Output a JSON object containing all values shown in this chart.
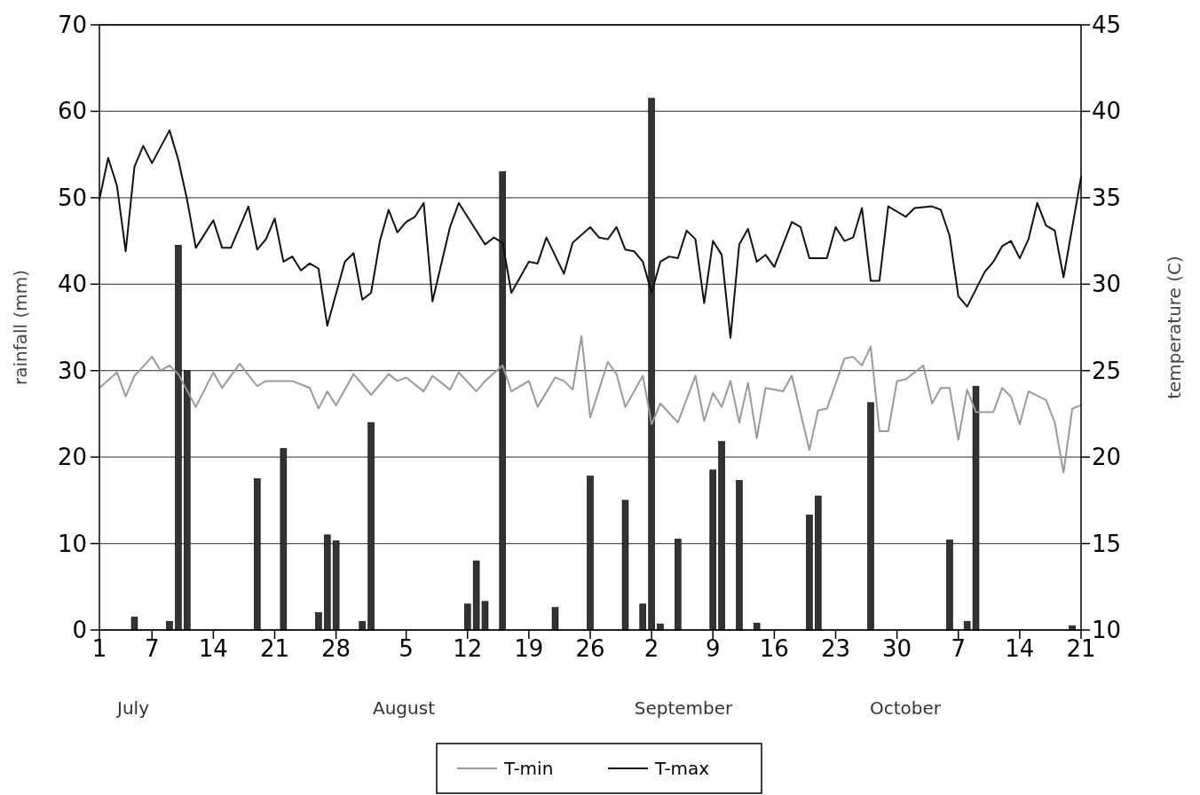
{
  "chart_data": {
    "type": "line",
    "xlabel": null,
    "ylabel": "rainfall (mm)",
    "y2label": "temperature (C)",
    "annotations": [
      "July",
      "August",
      "September",
      "October"
    ],
    "xlim": [
      "--07-01",
      "--10-21"
    ],
    "xticks": [
      {
        "value": "--07-01",
        "label": "1"
      },
      {
        "value": "--07-07",
        "label": "7"
      },
      {
        "value": "--07-14",
        "label": "14"
      },
      {
        "value": "--07-21",
        "label": "21"
      },
      {
        "value": "--07-28",
        "label": "28"
      },
      {
        "value": "--08-05",
        "label": "5"
      },
      {
        "value": "--08-12",
        "label": "12"
      },
      {
        "value": "--08-19",
        "label": "19"
      },
      {
        "value": "--08-26",
        "label": "26"
      },
      {
        "value": "--09-02",
        "label": "2"
      },
      {
        "value": "--09-09",
        "label": "9"
      },
      {
        "value": "--09-16",
        "label": "16"
      },
      {
        "value": "--09-23",
        "label": "23"
      },
      {
        "value": "--09-30",
        "label": "30"
      },
      {
        "value": "--10-07",
        "label": "7"
      },
      {
        "value": "--10-14",
        "label": "14"
      },
      {
        "value": "--10-21",
        "label": "21"
      }
    ],
    "ylim": [
      0,
      70
    ],
    "yticks": [
      0,
      10,
      20,
      30,
      40,
      50,
      60,
      70
    ],
    "y2lim": [
      10,
      45
    ],
    "y2ticks": [
      10,
      15,
      20,
      25,
      30,
      35,
      40,
      45
    ],
    "grid": "y",
    "legend": "bottom",
    "line_style": "solid",
    "marker": "none",
    "series": [
      {
        "type": "bar",
        "color": "#333333",
        "x": [
          "--07-05",
          "--07-09",
          "--07-10",
          "--07-11",
          "--07-19",
          "--07-22",
          "--07-26",
          "--07-27",
          "--07-28",
          "--07-31",
          "--08-01",
          "--08-12",
          "--08-13",
          "--08-14",
          "--08-16",
          "--08-22",
          "--08-26",
          "--08-30",
          "--09-01",
          "--09-02",
          "--09-03",
          "--09-05",
          "--09-09",
          "--09-10",
          "--09-12",
          "--09-14",
          "--09-20",
          "--09-21",
          "--09-27",
          "--10-06",
          "--10-08",
          "--10-09",
          "--10-20"
        ],
        "values": [
          1.5,
          1,
          44.5,
          30,
          17.5,
          21,
          2,
          11,
          10.3,
          1,
          24,
          3,
          8,
          3.3,
          53,
          2.6,
          17.8,
          15,
          3,
          61.5,
          0.7,
          10.5,
          18.5,
          21.8,
          17.3,
          0.8,
          13.3,
          15.5,
          26.3,
          10.4,
          1,
          28.2,
          0.5
        ]
      },
      {
        "name": "T-min",
        "axis": "y2",
        "color": "#999999",
        "x": [
          "--07-01",
          "--07-03",
          "--07-04",
          "--07-05",
          "--07-07",
          "--07-08",
          "--07-09",
          "--07-10",
          "--07-12",
          "--07-14",
          "--07-15",
          "--07-17",
          "--07-19",
          "--07-20",
          "--07-23",
          "--07-25",
          "--07-26",
          "--07-27",
          "--07-28",
          "--07-30",
          "--08-01",
          "--08-03",
          "--08-04",
          "--08-05",
          "--08-07",
          "--08-08",
          "--08-10",
          "--08-11",
          "--08-13",
          "--08-14",
          "--08-16",
          "--08-17",
          "--08-19",
          "--08-20",
          "--08-22",
          "--08-23",
          "--08-24",
          "--08-25",
          "--08-26",
          "--08-28",
          "--08-29",
          "--08-30",
          "--09-01",
          "--09-02",
          "--09-03",
          "--09-05",
          "--09-07",
          "--09-08",
          "--09-09",
          "--09-10",
          "--09-11",
          "--09-12",
          "--09-13",
          "--09-14",
          "--09-15",
          "--09-17",
          "--09-18",
          "--09-20",
          "--09-21",
          "--09-22",
          "--09-24",
          "--09-25",
          "--09-26",
          "--09-27",
          "--09-28",
          "--09-29",
          "--09-30",
          "--10-01",
          "--10-03",
          "--10-04",
          "--10-05",
          "--10-06",
          "--10-07",
          "--10-08",
          "--10-09",
          "--10-11",
          "--10-12",
          "--10-13",
          "--10-14",
          "--10-15",
          "--10-17",
          "--10-18",
          "--10-19",
          "--10-20",
          "--10-21"
        ],
        "values": [
          24.0,
          24.9,
          23.5,
          24.7,
          25.8,
          25.0,
          25.3,
          24.8,
          22.9,
          24.9,
          24.0,
          25.4,
          24.1,
          24.4,
          24.4,
          24.0,
          22.8,
          23.8,
          23.0,
          24.8,
          23.6,
          24.8,
          24.4,
          24.6,
          23.8,
          24.7,
          23.9,
          24.9,
          23.8,
          24.4,
          25.3,
          23.8,
          24.4,
          22.9,
          24.6,
          24.4,
          23.9,
          27.0,
          22.3,
          25.5,
          24.8,
          22.9,
          24.7,
          21.9,
          23.1,
          22.0,
          24.7,
          22.1,
          23.7,
          22.9,
          24.4,
          22.0,
          24.3,
          21.1,
          24.0,
          23.8,
          24.7,
          20.4,
          22.7,
          22.8,
          25.7,
          25.8,
          25.3,
          26.4,
          21.5,
          21.5,
          24.4,
          24.5,
          25.3,
          23.1,
          24.0,
          24.0,
          21.0,
          23.9,
          22.6,
          22.6,
          24.0,
          23.5,
          21.9,
          23.8,
          23.3,
          22.0,
          19.1,
          22.8,
          23.0
        ]
      },
      {
        "name": "T-max",
        "axis": "y2",
        "color": "#111111",
        "x": [
          "--07-01",
          "--07-02",
          "--07-03",
          "--07-04",
          "--07-05",
          "--07-06",
          "--07-07",
          "--07-09",
          "--07-10",
          "--07-11",
          "--07-12",
          "--07-14",
          "--07-15",
          "--07-16",
          "--07-18",
          "--07-19",
          "--07-20",
          "--07-21",
          "--07-22",
          "--07-23",
          "--07-24",
          "--07-25",
          "--07-26",
          "--07-27",
          "--07-29",
          "--07-30",
          "--07-31",
          "--08-01",
          "--08-02",
          "--08-03",
          "--08-04",
          "--08-05",
          "--08-06",
          "--08-07",
          "--08-08",
          "--08-10",
          "--08-11",
          "--08-14",
          "--08-15",
          "--08-16",
          "--08-17",
          "--08-19",
          "--08-20",
          "--08-21",
          "--08-23",
          "--08-24",
          "--08-26",
          "--08-27",
          "--08-28",
          "--08-29",
          "--08-30",
          "--08-31",
          "--09-01",
          "--09-02",
          "--09-03",
          "--09-04",
          "--09-05",
          "--09-06",
          "--09-07",
          "--09-08",
          "--09-09",
          "--09-10",
          "--09-11",
          "--09-12",
          "--09-13",
          "--09-14",
          "--09-15",
          "--09-16",
          "--09-18",
          "--09-19",
          "--09-20",
          "--09-22",
          "--09-23",
          "--09-24",
          "--09-25",
          "--09-26",
          "--09-27",
          "--09-28",
          "--09-29",
          "--10-01",
          "--10-02",
          "--10-04",
          "--10-05",
          "--10-06",
          "--10-07",
          "--10-08",
          "--10-10",
          "--10-11",
          "--10-12",
          "--10-13",
          "--10-14",
          "--10-15",
          "--10-16",
          "--10-17",
          "--10-18",
          "--10-19",
          "--10-21"
        ],
        "values": [
          34.9,
          37.3,
          35.7,
          31.9,
          36.8,
          38.0,
          37.0,
          38.9,
          37.2,
          34.9,
          32.1,
          33.7,
          32.1,
          32.1,
          34.5,
          32.0,
          32.6,
          33.8,
          31.3,
          31.6,
          30.8,
          31.2,
          30.9,
          27.6,
          31.3,
          31.8,
          29.1,
          29.5,
          32.5,
          34.3,
          33.0,
          33.6,
          33.9,
          34.7,
          29.0,
          33.3,
          34.7,
          32.3,
          32.7,
          32.4,
          29.5,
          31.3,
          31.2,
          32.7,
          30.6,
          32.4,
          33.3,
          32.7,
          32.6,
          33.3,
          32.0,
          31.9,
          31.3,
          29.5,
          31.3,
          31.6,
          31.5,
          33.1,
          32.6,
          28.9,
          32.5,
          31.7,
          26.9,
          32.3,
          33.2,
          31.3,
          31.7,
          31.0,
          33.6,
          33.3,
          31.5,
          31.5,
          33.3,
          32.5,
          32.7,
          34.4,
          30.2,
          30.2,
          34.5,
          33.9,
          34.4,
          34.5,
          34.3,
          32.8,
          29.3,
          28.7,
          30.7,
          31.3,
          32.2,
          32.5,
          31.5,
          32.6,
          34.7,
          33.4,
          33.1,
          30.4,
          36.2
        ]
      }
    ]
  }
}
